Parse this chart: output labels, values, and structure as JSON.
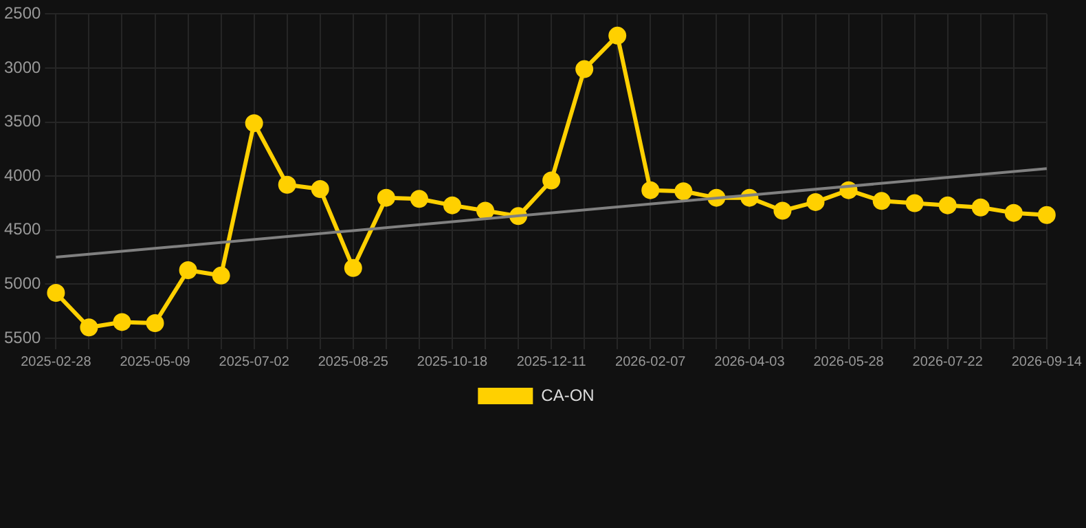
{
  "chart_data": {
    "type": "line",
    "categories": [
      "2025-02-28",
      null,
      null,
      "2025-05-09",
      null,
      null,
      "2025-07-02",
      null,
      null,
      "2025-08-25",
      null,
      null,
      "2025-10-18",
      null,
      null,
      "2025-12-11",
      null,
      null,
      "2026-02-07",
      null,
      null,
      "2026-04-03",
      null,
      null,
      "2026-05-28",
      null,
      null,
      "2026-07-22",
      null,
      null,
      "2026-09-14"
    ],
    "series": [
      {
        "name": "CA-ON",
        "color": "#ffd000",
        "marker": "circle",
        "values": [
          5080,
          5400,
          5350,
          5360,
          4870,
          4920,
          3510,
          4080,
          4120,
          4850,
          4200,
          4210,
          4270,
          4320,
          4370,
          4040,
          3010,
          2700,
          4130,
          4140,
          4200,
          4200,
          4320,
          4240,
          4130,
          4230,
          4250,
          4270,
          4290,
          4340,
          4360
        ]
      },
      {
        "type": "line",
        "color": "#808080",
        "marker": "none",
        "values": [
          4750,
          null,
          null,
          null,
          null,
          null,
          null,
          null,
          null,
          null,
          null,
          null,
          null,
          null,
          null,
          null,
          null,
          null,
          null,
          null,
          null,
          null,
          null,
          null,
          null,
          null,
          null,
          null,
          null,
          null,
          3930
        ]
      }
    ],
    "ylim": [
      5500,
      2500
    ],
    "yticks": [
      2500,
      3000,
      3500,
      4000,
      4500,
      5000,
      5500
    ],
    "grid": true,
    "legend": "bottom"
  }
}
